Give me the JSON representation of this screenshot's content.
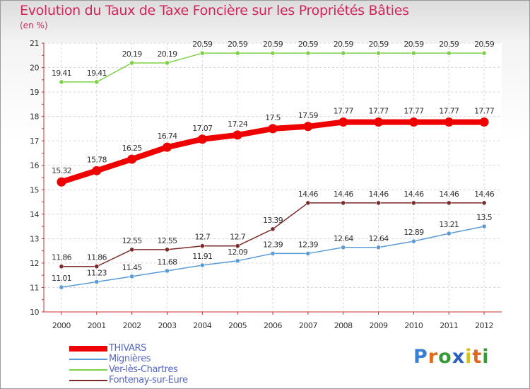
{
  "title": "Evolution du Taux de Taxe Foncière sur les Propriétés Bâties",
  "subtitle": "(en %)",
  "brand": {
    "letters": [
      "P",
      "r",
      "o",
      "x",
      "i",
      "t",
      "i"
    ],
    "colors": [
      "#3a7fd5",
      "#e06a1b",
      "#3a9a3a",
      "#2a5fc0",
      "#d4c21a",
      "#e06a1b",
      "#3a9a3a"
    ]
  },
  "chart_data": {
    "type": "line",
    "x": [
      "2000",
      "2001",
      "2002",
      "2003",
      "2004",
      "2005",
      "2006",
      "2007",
      "2008",
      "2009",
      "2010",
      "2011",
      "2012"
    ],
    "ylim": [
      10,
      21
    ],
    "yticks": [
      "10",
      "11",
      "12",
      "13",
      "14",
      "15",
      "16",
      "17",
      "18",
      "19",
      "20",
      "21"
    ],
    "grid": true,
    "legend_position": "bottom-left",
    "series": [
      {
        "name": "Ver-lès-Chartres",
        "color": "#7ed04a",
        "width": 1.5,
        "marker": 3,
        "values": [
          19.41,
          19.41,
          20.19,
          20.19,
          20.59,
          20.59,
          20.59,
          20.59,
          20.59,
          20.59,
          20.59,
          20.59,
          20.59
        ],
        "labels": [
          "19.41",
          "19.41",
          "20.19",
          "20.19",
          "20.59",
          "20.59",
          "20.59",
          "20.59",
          "20.59",
          "20.59",
          "20.59",
          "20.59",
          "20.59"
        ]
      },
      {
        "name": "THIVARS",
        "color": "#ee0000",
        "width": 8,
        "marker": 6.5,
        "values": [
          15.32,
          15.78,
          16.25,
          16.74,
          17.07,
          17.24,
          17.5,
          17.59,
          17.77,
          17.77,
          17.77,
          17.77,
          17.77
        ],
        "labels": [
          "15.32",
          "15.78",
          "16.25",
          "16.74",
          "17.07",
          "17.24",
          "17.5",
          "17.59",
          "17.77",
          "17.77",
          "17.77",
          "17.77",
          "17.77"
        ]
      },
      {
        "name": "Fontenay-sur-Eure",
        "color": "#7a2a2a",
        "width": 1.5,
        "marker": 3,
        "values": [
          11.86,
          11.86,
          12.55,
          12.55,
          12.7,
          12.7,
          13.39,
          14.46,
          14.46,
          14.46,
          14.46,
          14.46,
          14.46
        ],
        "labels": [
          "11.86",
          "11.86",
          "12.55",
          "12.55",
          "12.7",
          "12.7",
          "13.39",
          "14.46",
          "14.46",
          "14.46",
          "14.46",
          "14.46",
          "14.46"
        ]
      },
      {
        "name": "Mignières",
        "color": "#5b9bd5",
        "width": 1.5,
        "marker": 3,
        "values": [
          11.01,
          11.23,
          11.45,
          11.68,
          11.91,
          12.09,
          12.39,
          12.39,
          12.64,
          12.64,
          12.89,
          13.21,
          13.5
        ],
        "labels": [
          "11.01",
          "11.23",
          "11.45",
          "11.68",
          "11.91",
          "12.09",
          "12.39",
          "12.39",
          "12.64",
          "12.64",
          "12.89",
          "13.21",
          "13.5"
        ]
      }
    ],
    "legend": [
      {
        "name": "THIVARS",
        "color": "#ee0000",
        "width": 8
      },
      {
        "name": "Mignières",
        "color": "#5b9bd5",
        "width": 2
      },
      {
        "name": "Ver-lès-Chartres",
        "color": "#7ed04a",
        "width": 2
      },
      {
        "name": "Fontenay-sur-Eure",
        "color": "#7a2a2a",
        "width": 2
      }
    ]
  }
}
